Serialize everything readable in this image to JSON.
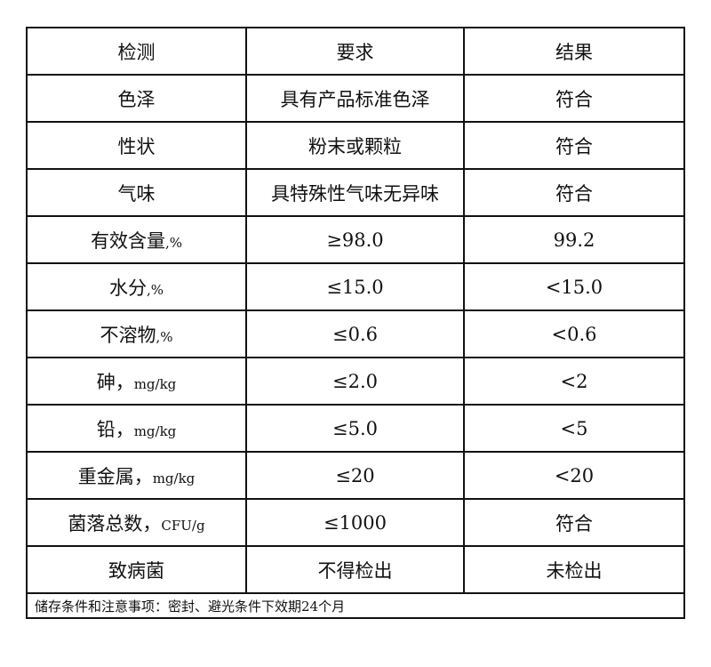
{
  "header": [
    "检测",
    "要求",
    "结果"
  ],
  "rows": [
    {
      "item": "色泽",
      "unit": "",
      "req": "具有产品标准色泽",
      "result": "符合"
    },
    {
      "item": "性状",
      "unit": "",
      "req": "粉末或颗粒",
      "result": "符合"
    },
    {
      "item": "气味",
      "unit": "",
      "req": "具特殊性气味无异味",
      "result": "符合"
    },
    {
      "item": "有效含量",
      "unit": ",%",
      "req": "≥98.0",
      "result": "99.2"
    },
    {
      "item": "水分",
      "unit": ",%",
      "req": "≤15.0",
      "result": "<15.0"
    },
    {
      "item": "不溶物",
      "unit": ",%",
      "req": "≤0.6",
      "result": "<0.6"
    },
    {
      "item": "砷，",
      "unit": "mg/kg",
      "req": "≤2.0",
      "result": "<2"
    },
    {
      "item": "铅，",
      "unit": "mg/kg",
      "req": "≤5.0",
      "result": "<5"
    },
    {
      "item": "重金属，",
      "unit": "mg/kg",
      "req": "≤20",
      "result": "<20"
    },
    {
      "item": "菌落总数，",
      "unit": "CFU/g",
      "req": "≤1000",
      "result": "符合"
    },
    {
      "item": "致病菌",
      "unit": "",
      "req": "不得检出",
      "result": "未检出"
    }
  ],
  "footer": "储存条件和注意事项：密封、避光条件下效期24个月"
}
